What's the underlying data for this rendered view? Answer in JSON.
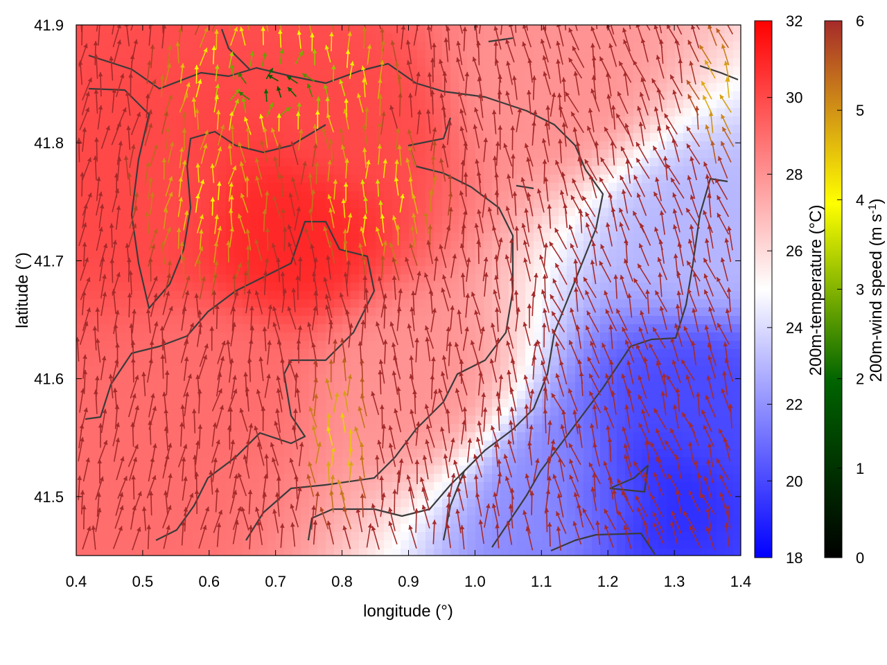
{
  "chart_data": {
    "type": "heatmap",
    "xlabel": "longitude (°)",
    "ylabel": "latitude (°)",
    "xlim": [
      0.4,
      1.4
    ],
    "ylim": [
      41.45,
      41.9
    ],
    "x_ticks": [
      "0.4",
      "0.5",
      "0.6",
      "0.7",
      "0.8",
      "0.9",
      "1.0",
      "1.1",
      "1.2",
      "1.3",
      "1.4"
    ],
    "y_ticks": [
      "41.5",
      "41.6",
      "41.7",
      "41.8",
      "41.9"
    ],
    "temperature_colorbar": {
      "label": "200m-temperature (°C)",
      "range": [
        18,
        32
      ],
      "ticks": [
        "18",
        "20",
        "22",
        "24",
        "26",
        "28",
        "30",
        "32"
      ],
      "colors": [
        "#0000ff",
        "#ffffff",
        "#ff0000"
      ]
    },
    "wind_colorbar": {
      "label": "200m-wind speed (m s",
      "label_sup": "-1",
      "label_end": ")",
      "range": [
        0,
        6
      ],
      "ticks": [
        "0",
        "1",
        "2",
        "3",
        "4",
        "5",
        "6"
      ],
      "colors": [
        "#000000",
        "#006400",
        "#ffff00",
        "#a52a2a"
      ]
    },
    "temperature_field": {
      "hot_spots": [
        {
          "lon": 0.72,
          "lat": 41.72,
          "t": 31
        },
        {
          "lon": 0.5,
          "lat": 41.75,
          "t": 30
        },
        {
          "lon": 0.82,
          "lat": 41.82,
          "t": 30
        },
        {
          "lon": 0.6,
          "lat": 41.6,
          "t": 29
        },
        {
          "lon": 0.9,
          "lat": 41.6,
          "t": 28
        },
        {
          "lon": 0.45,
          "lat": 41.5,
          "t": 29
        },
        {
          "lon": 1.1,
          "lat": 41.85,
          "t": 28
        }
      ],
      "cold_spots": [
        {
          "lon": 1.25,
          "lat": 41.5,
          "t": 19
        },
        {
          "lon": 1.33,
          "lat": 41.58,
          "t": 20
        },
        {
          "lon": 1.35,
          "lat": 41.72,
          "t": 23
        },
        {
          "lon": 1.15,
          "lat": 41.5,
          "t": 22
        }
      ]
    }
  }
}
